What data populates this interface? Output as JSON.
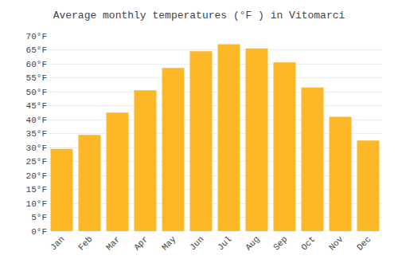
{
  "chart_data": {
    "type": "bar",
    "title": "Average monthly temperatures (°F ) in Vitomarci",
    "categories": [
      "Jan",
      "Feb",
      "Mar",
      "Apr",
      "May",
      "Jun",
      "Jul",
      "Aug",
      "Sep",
      "Oct",
      "Nov",
      "Dec"
    ],
    "values": [
      29.5,
      34.5,
      42.5,
      50.5,
      58.5,
      64.5,
      67.0,
      65.5,
      60.5,
      51.5,
      41.0,
      32.5
    ],
    "color": "#FDB827",
    "ylim": [
      0,
      70
    ],
    "yticks": [
      {
        "value": 0,
        "label": "0°F"
      },
      {
        "value": 5,
        "label": "5°F"
      },
      {
        "value": 10,
        "label": "10°F"
      },
      {
        "value": 15,
        "label": "15°F"
      },
      {
        "value": 20,
        "label": "20°F"
      },
      {
        "value": 25,
        "label": "25°F"
      },
      {
        "value": 30,
        "label": "30°F"
      },
      {
        "value": 35,
        "label": "35°F"
      },
      {
        "value": 40,
        "label": "40°F"
      },
      {
        "value": 45,
        "label": "45°F"
      },
      {
        "value": 50,
        "label": "50°F"
      },
      {
        "value": 55,
        "label": "55°F"
      },
      {
        "value": 60,
        "label": "60°F"
      },
      {
        "value": 65,
        "label": "65°F"
      },
      {
        "value": 70,
        "label": "70°F"
      }
    ],
    "grid": true
  }
}
